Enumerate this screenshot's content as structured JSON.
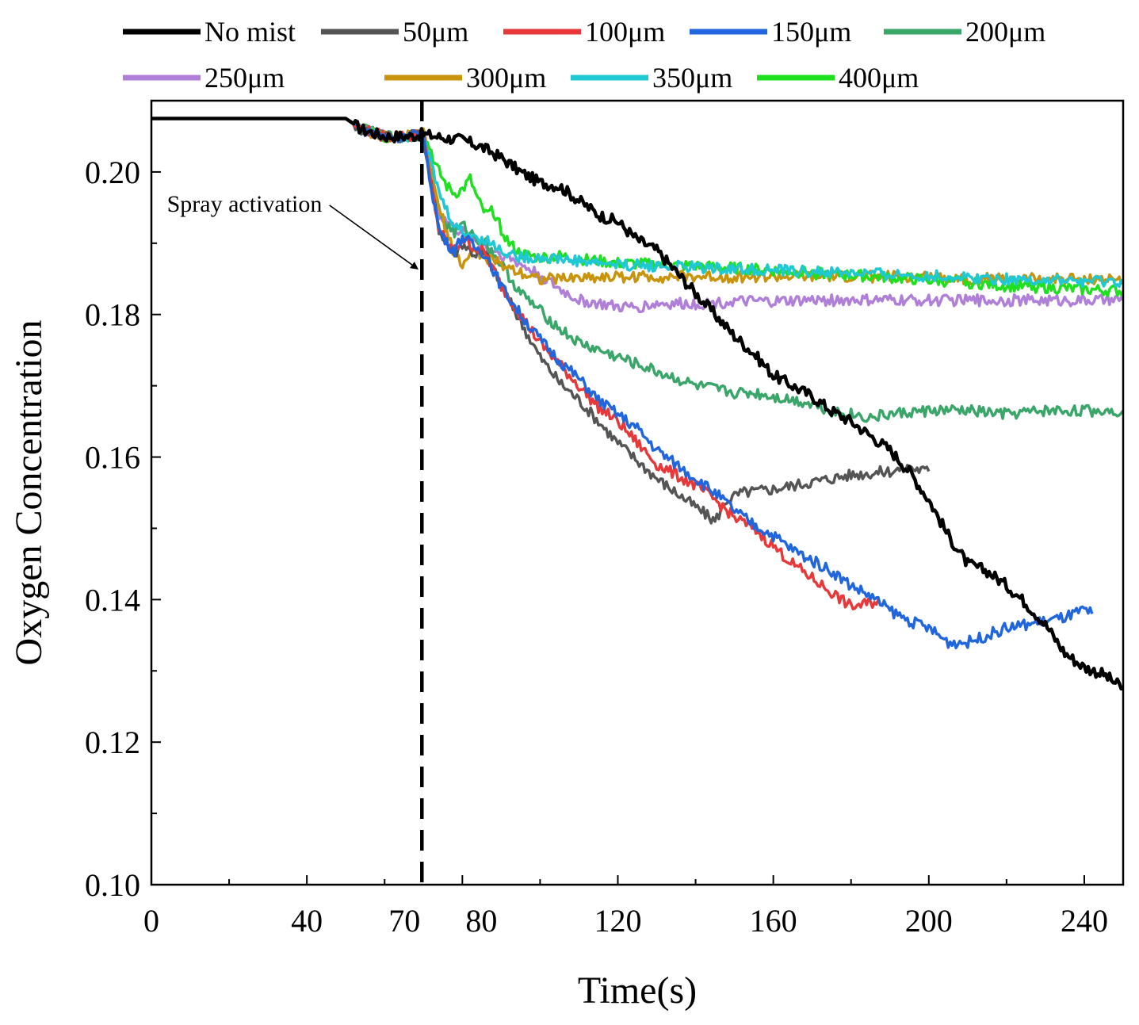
{
  "chart_data": {
    "type": "line",
    "title": "",
    "xlabel": "Time(s)",
    "ylabel": "Oxygen Concentration",
    "xlim": [
      0,
      250
    ],
    "ylim": [
      0.1,
      0.21
    ],
    "x_ticks": [
      0,
      40,
      70,
      80,
      120,
      160,
      200,
      240
    ],
    "x_tick_labels": [
      "0",
      "40",
      "70",
      "80",
      "120",
      "160",
      "200",
      "240"
    ],
    "y_ticks": [
      0.1,
      0.12,
      0.14,
      0.16,
      0.18,
      0.2
    ],
    "y_tick_labels": [
      "0.10",
      "0.12",
      "0.14",
      "0.16",
      "0.18",
      "0.20"
    ],
    "legend_position": "top",
    "annotation": {
      "text": "Spray activation",
      "x": 70,
      "text_at": [
        4,
        0.196
      ],
      "arrow_to": [
        69,
        0.186
      ]
    },
    "series": [
      {
        "name": "No mist",
        "color": "#000000",
        "x": [
          0,
          50,
          54,
          60,
          66,
          70,
          75,
          80,
          85,
          90,
          95,
          100,
          105,
          110,
          115,
          120,
          125,
          130,
          135,
          140,
          145,
          150,
          155,
          160,
          165,
          170,
          175,
          180,
          185,
          190,
          195,
          200,
          205,
          210,
          215,
          220,
          225,
          230,
          235,
          240,
          245,
          250
        ],
        "y": [
          0.2075,
          0.2075,
          0.206,
          0.205,
          0.205,
          0.2053,
          0.2048,
          0.2045,
          0.2035,
          0.202,
          0.2,
          0.1985,
          0.198,
          0.196,
          0.194,
          0.193,
          0.1905,
          0.189,
          0.186,
          0.183,
          0.18,
          0.177,
          0.1745,
          0.1715,
          0.17,
          0.1685,
          0.1665,
          0.165,
          0.163,
          0.161,
          0.158,
          0.154,
          0.149,
          0.145,
          0.144,
          0.142,
          0.1395,
          0.1365,
          0.1325,
          0.1305,
          0.1295,
          0.1275
        ]
      },
      {
        "name": "50μm",
        "color": "#555555",
        "x": [
          0,
          50,
          54,
          60,
          66,
          70,
          71,
          72,
          73,
          74,
          76,
          78,
          80,
          83,
          86,
          90,
          95,
          100,
          105,
          110,
          115,
          120,
          125,
          130,
          135,
          140,
          145,
          148,
          152,
          160,
          170,
          180,
          190,
          195,
          200
        ],
        "y": [
          0.2075,
          0.2075,
          0.206,
          0.205,
          0.205,
          0.2053,
          0.201,
          0.198,
          0.195,
          0.192,
          0.19,
          0.1885,
          0.19,
          0.1885,
          0.1885,
          0.184,
          0.179,
          0.174,
          0.1705,
          0.168,
          0.165,
          0.162,
          0.1595,
          0.157,
          0.155,
          0.153,
          0.151,
          0.154,
          0.155,
          0.1555,
          0.1565,
          0.1575,
          0.158,
          0.1585,
          0.158
        ]
      },
      {
        "name": "100μm",
        "color": "#e8393a",
        "x": [
          0,
          50,
          54,
          60,
          66,
          70,
          71,
          72,
          73,
          74,
          76,
          78,
          80,
          83,
          86,
          90,
          95,
          100,
          105,
          110,
          115,
          120,
          125,
          130,
          135,
          140,
          145,
          150,
          155,
          160,
          165,
          170,
          175,
          180,
          185,
          187
        ],
        "y": [
          0.2075,
          0.2075,
          0.206,
          0.205,
          0.205,
          0.2053,
          0.201,
          0.198,
          0.195,
          0.192,
          0.19,
          0.189,
          0.1905,
          0.1895,
          0.1885,
          0.184,
          0.18,
          0.176,
          0.173,
          0.17,
          0.167,
          0.165,
          0.162,
          0.159,
          0.1575,
          0.156,
          0.154,
          0.1515,
          0.15,
          0.1475,
          0.145,
          0.143,
          0.141,
          0.139,
          0.1395,
          0.14
        ]
      },
      {
        "name": "150μm",
        "color": "#2266dd",
        "x": [
          0,
          50,
          54,
          60,
          66,
          70,
          71,
          72,
          73,
          74,
          76,
          78,
          80,
          83,
          86,
          90,
          95,
          100,
          105,
          110,
          115,
          120,
          125,
          130,
          135,
          140,
          145,
          150,
          155,
          160,
          165,
          170,
          175,
          180,
          185,
          190,
          195,
          200,
          205,
          210,
          215,
          220,
          225,
          230,
          235,
          240,
          242
        ],
        "y": [
          0.2075,
          0.2075,
          0.206,
          0.205,
          0.205,
          0.2053,
          0.201,
          0.198,
          0.195,
          0.192,
          0.19,
          0.189,
          0.191,
          0.1895,
          0.1885,
          0.184,
          0.18,
          0.1765,
          0.1735,
          0.171,
          0.168,
          0.166,
          0.164,
          0.161,
          0.159,
          0.157,
          0.155,
          0.1525,
          0.1505,
          0.149,
          0.147,
          0.1455,
          0.144,
          0.142,
          0.1405,
          0.1385,
          0.137,
          0.136,
          0.134,
          0.134,
          0.135,
          0.136,
          0.1365,
          0.137,
          0.1375,
          0.1385,
          0.138
        ]
      },
      {
        "name": "200μm",
        "color": "#3aa66a",
        "x": [
          0,
          50,
          54,
          60,
          66,
          70,
          71,
          72,
          73,
          74,
          76,
          78,
          80,
          83,
          86,
          90,
          95,
          100,
          105,
          110,
          115,
          120,
          125,
          130,
          135,
          140,
          145,
          150,
          155,
          160,
          165,
          170,
          175,
          180,
          185,
          190,
          200,
          210,
          220,
          230,
          240,
          250
        ],
        "y": [
          0.2075,
          0.2075,
          0.206,
          0.205,
          0.205,
          0.2053,
          0.202,
          0.1995,
          0.197,
          0.1945,
          0.1925,
          0.1915,
          0.1925,
          0.191,
          0.19,
          0.187,
          0.183,
          0.1805,
          0.178,
          0.176,
          0.175,
          0.174,
          0.173,
          0.172,
          0.171,
          0.17,
          0.1695,
          0.169,
          0.169,
          0.1685,
          0.168,
          0.1675,
          0.1665,
          0.166,
          0.1655,
          0.166,
          0.1665,
          0.1665,
          0.166,
          0.1665,
          0.1665,
          0.1665
        ]
      },
      {
        "name": "250μm",
        "color": "#b07fd8",
        "x": [
          0,
          50,
          54,
          60,
          66,
          70,
          71,
          72,
          73,
          74,
          76,
          78,
          80,
          83,
          86,
          90,
          95,
          100,
          105,
          110,
          115,
          120,
          125,
          130,
          140,
          150,
          160,
          170,
          180,
          190,
          200,
          210,
          220,
          230,
          240,
          250
        ],
        "y": [
          0.2075,
          0.2075,
          0.206,
          0.205,
          0.205,
          0.2053,
          0.202,
          0.199,
          0.196,
          0.194,
          0.193,
          0.192,
          0.1915,
          0.1905,
          0.1895,
          0.1885,
          0.187,
          0.1855,
          0.1835,
          0.182,
          0.1815,
          0.181,
          0.181,
          0.1815,
          0.1815,
          0.1818,
          0.1818,
          0.182,
          0.182,
          0.182,
          0.182,
          0.182,
          0.182,
          0.182,
          0.182,
          0.182
        ]
      },
      {
        "name": "300μm",
        "color": "#c8940c",
        "x": [
          0,
          50,
          54,
          60,
          66,
          70,
          71,
          72,
          73,
          74,
          76,
          78,
          80,
          83,
          86,
          90,
          95,
          100,
          105,
          110,
          120,
          130,
          140,
          150,
          160,
          170,
          180,
          190,
          200,
          210,
          220,
          230,
          240,
          250
        ],
        "y": [
          0.2075,
          0.2075,
          0.206,
          0.205,
          0.205,
          0.2053,
          0.203,
          0.2,
          0.197,
          0.195,
          0.1915,
          0.1885,
          0.187,
          0.189,
          0.188,
          0.187,
          0.186,
          0.185,
          0.185,
          0.1852,
          0.1853,
          0.1853,
          0.1853,
          0.1853,
          0.1853,
          0.1853,
          0.1853,
          0.1853,
          0.1853,
          0.185,
          0.185,
          0.185,
          0.185,
          0.1848
        ]
      },
      {
        "name": "350μm",
        "color": "#1fc8d2",
        "x": [
          0,
          50,
          54,
          60,
          66,
          70,
          71,
          72,
          73,
          74,
          76,
          78,
          80,
          83,
          86,
          90,
          95,
          100,
          105,
          110,
          120,
          130,
          140,
          150,
          160,
          170,
          180,
          190,
          200,
          210,
          220,
          230,
          240,
          250
        ],
        "y": [
          0.2075,
          0.2075,
          0.206,
          0.205,
          0.205,
          0.2053,
          0.203,
          0.201,
          0.199,
          0.197,
          0.1945,
          0.1925,
          0.1915,
          0.191,
          0.1905,
          0.189,
          0.188,
          0.188,
          0.1878,
          0.1875,
          0.187,
          0.1868,
          0.1866,
          0.1864,
          0.1862,
          0.186,
          0.1858,
          0.1856,
          0.1854,
          0.1852,
          0.185,
          0.1848,
          0.1846,
          0.1845
        ]
      },
      {
        "name": "400μm",
        "color": "#1ee01e",
        "x": [
          0,
          50,
          54,
          60,
          66,
          70,
          71,
          72,
          73,
          74,
          76,
          78,
          80,
          82,
          84,
          86,
          88,
          90,
          92,
          95,
          100,
          105,
          110,
          120,
          130,
          140,
          150,
          160,
          170,
          180,
          190,
          200,
          210,
          220,
          230,
          240,
          250
        ],
        "y": [
          0.2075,
          0.2075,
          0.206,
          0.205,
          0.205,
          0.2053,
          0.204,
          0.203,
          0.201,
          0.2,
          0.198,
          0.197,
          0.1975,
          0.199,
          0.196,
          0.194,
          0.1945,
          0.192,
          0.19,
          0.1885,
          0.188,
          0.1882,
          0.1878,
          0.1872,
          0.187,
          0.1868,
          0.1865,
          0.1862,
          0.1858,
          0.1855,
          0.1852,
          0.1848,
          0.1845,
          0.184,
          0.1838,
          0.1835,
          0.1833
        ]
      }
    ]
  }
}
